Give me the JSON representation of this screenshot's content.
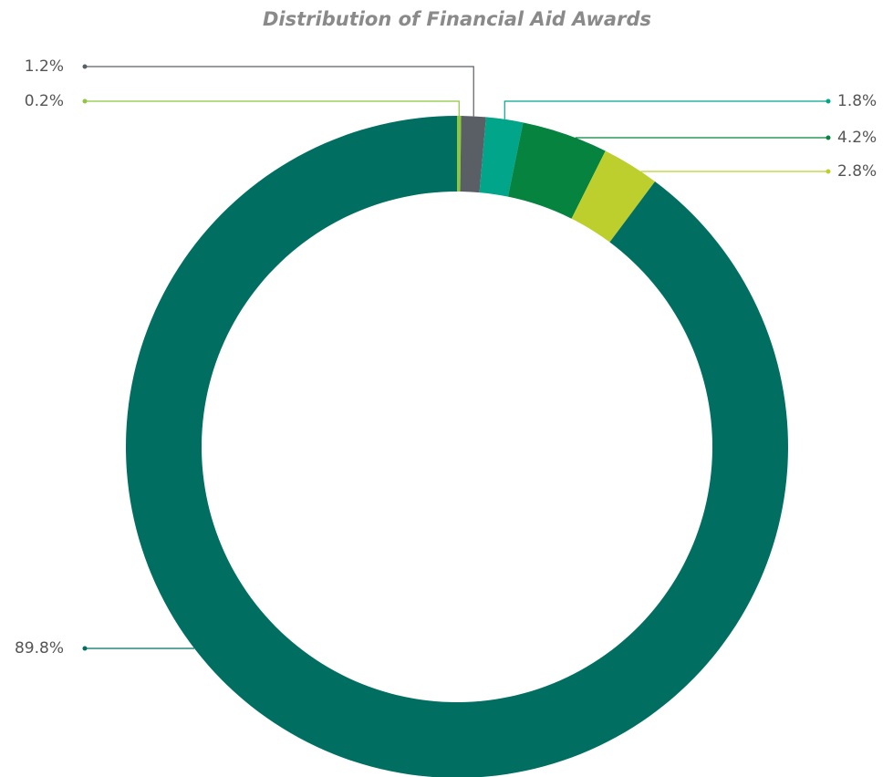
{
  "chart_data": {
    "type": "donut",
    "title": "Distribution of Financial Aid Awards",
    "values": [
      0.2,
      1.2,
      1.8,
      4.2,
      2.8,
      89.8
    ],
    "value_labels": [
      "0.2%",
      "1.2%",
      "1.8%",
      "4.2%",
      "2.8%",
      "89.8%"
    ],
    "colors": [
      "#8dc63f",
      "#5a5f66",
      "#00a58a",
      "#05833f",
      "#bccf2c",
      "#006f62"
    ]
  }
}
